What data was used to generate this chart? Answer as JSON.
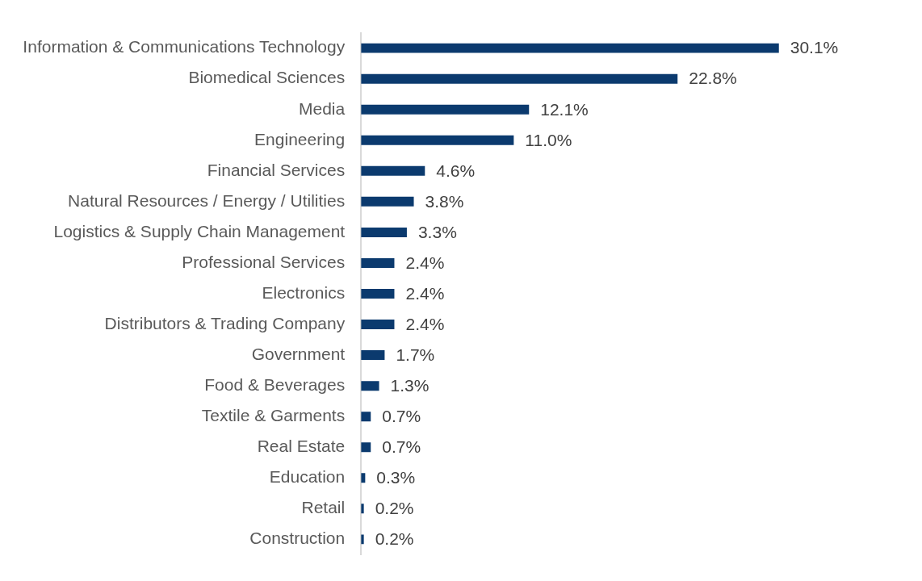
{
  "chart_data": {
    "type": "bar",
    "orientation": "horizontal",
    "tick_labels": "y",
    "grid": false,
    "legend": false,
    "categories": [
      "Information & Communications Technology",
      "Biomedical Sciences",
      "Media",
      "Engineering",
      "Financial Services",
      "Natural Resources / Energy / Utilities",
      "Logistics & Supply Chain Management",
      "Professional Services",
      "Electronics",
      "Distributors & Trading Company",
      "Government",
      "Food & Beverages",
      "Textile & Garments",
      "Real Estate",
      "Education",
      "Retail",
      "Construction"
    ],
    "values": [
      30.1,
      22.8,
      12.1,
      11.0,
      4.6,
      3.8,
      3.3,
      2.4,
      2.4,
      2.4,
      1.7,
      1.3,
      0.7,
      0.7,
      0.3,
      0.2,
      0.2
    ],
    "value_labels": [
      "30.1%",
      "22.8%",
      "12.1%",
      "11.0%",
      "4.6%",
      "3.8%",
      "3.3%",
      "2.4%",
      "2.4%",
      "2.4%",
      "1.7%",
      "1.3%",
      "0.7%",
      "0.7%",
      "0.3%",
      "0.2%",
      "0.2%"
    ],
    "color": "#0b3a6e"
  }
}
